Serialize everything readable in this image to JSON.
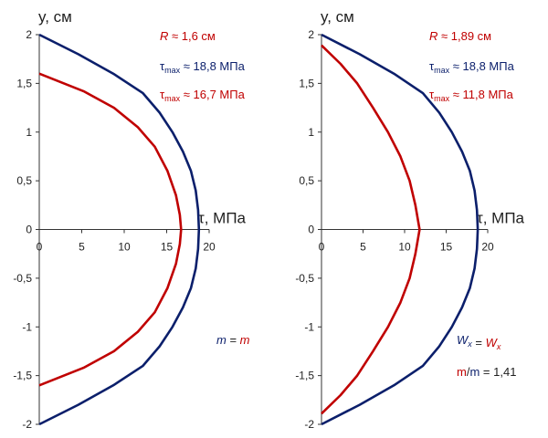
{
  "colors": {
    "blue": "#0b1f6b",
    "red": "#c00000",
    "axis": "#333333",
    "text": "#1f1f1f"
  },
  "chart_data": [
    {
      "type": "line",
      "xlabel": "τ, МПа",
      "ylabel": "y, см",
      "xlim": [
        0,
        20
      ],
      "ylim": [
        -2,
        2
      ],
      "x_ticks": [
        "0",
        "5",
        "10",
        "15",
        "20"
      ],
      "y_ticks": [
        "2",
        "1,5",
        "1",
        "0,5",
        "0",
        "-0,5",
        "-1",
        "-1,5",
        "-2"
      ],
      "series": [
        {
          "color": "#0b1f6b",
          "points": [
            [
              0,
              2
            ],
            [
              4.59,
              1.8
            ],
            [
              8.71,
              1.6
            ],
            [
              12.2,
              1.4
            ],
            [
              14.16,
              1.2
            ],
            [
              15.68,
              1
            ],
            [
              16.91,
              0.8
            ],
            [
              17.86,
              0.6
            ],
            [
              18.42,
              0.4
            ],
            [
              18.7,
              0.2
            ],
            [
              18.8,
              0
            ],
            [
              18.7,
              -0.2
            ],
            [
              18.42,
              -0.4
            ],
            [
              17.86,
              -0.6
            ],
            [
              16.91,
              -0.8
            ],
            [
              15.68,
              -1
            ],
            [
              14.16,
              -1.2
            ],
            [
              12.2,
              -1.4
            ],
            [
              8.71,
              -1.6
            ],
            [
              4.59,
              -1.8
            ],
            [
              0,
              -2
            ]
          ]
        },
        {
          "color": "#c00000",
          "points": [
            [
              0,
              1.6
            ],
            [
              5.2,
              1.42
            ],
            [
              8.8,
              1.25
            ],
            [
              11.6,
              1.05
            ],
            [
              13.6,
              0.85
            ],
            [
              15.1,
              0.6
            ],
            [
              16.1,
              0.35
            ],
            [
              16.55,
              0.15
            ],
            [
              16.7,
              0
            ],
            [
              16.55,
              -0.15
            ],
            [
              16.1,
              -0.35
            ],
            [
              15.1,
              -0.6
            ],
            [
              13.6,
              -0.85
            ],
            [
              11.6,
              -1.05
            ],
            [
              8.8,
              -1.25
            ],
            [
              5.2,
              -1.42
            ],
            [
              0,
              -1.6
            ]
          ]
        }
      ],
      "annotations": [
        {
          "prefix": "R",
          "text": " ≈ 1,6 см",
          "color": "#c00000"
        },
        {
          "prefix": "τ",
          "sub": "max",
          "text": " ≈ 18,8 МПа",
          "color": "#0b1f6b"
        },
        {
          "prefix": "τ",
          "sub": "max",
          "text": " ≈ 16,7 МПа",
          "color": "#c00000"
        },
        {
          "parts": [
            {
              "t": "m",
              "italic": true,
              "color": "#0b1f6b"
            },
            {
              "t": " = ",
              "color": "#1f1f1f"
            },
            {
              "t": "m",
              "italic": true,
              "color": "#c00000"
            }
          ]
        }
      ]
    },
    {
      "type": "line",
      "xlabel": "τ, МПа",
      "ylabel": "y, см",
      "xlim": [
        0,
        20
      ],
      "ylim": [
        -2,
        2
      ],
      "x_ticks": [
        "0",
        "5",
        "10",
        "15",
        "20"
      ],
      "y_ticks": [
        "2",
        "1,5",
        "1",
        "0,5",
        "0",
        "-0,5",
        "-1",
        "-1,5",
        "-2"
      ],
      "series": [
        {
          "color": "#0b1f6b",
          "points": [
            [
              0,
              2
            ],
            [
              4.59,
              1.8
            ],
            [
              8.71,
              1.6
            ],
            [
              12.2,
              1.4
            ],
            [
              14.16,
              1.2
            ],
            [
              15.68,
              1
            ],
            [
              16.91,
              0.8
            ],
            [
              17.86,
              0.6
            ],
            [
              18.42,
              0.4
            ],
            [
              18.7,
              0.2
            ],
            [
              18.8,
              0
            ],
            [
              18.7,
              -0.2
            ],
            [
              18.42,
              -0.4
            ],
            [
              17.86,
              -0.6
            ],
            [
              16.91,
              -0.8
            ],
            [
              15.68,
              -1
            ],
            [
              14.16,
              -1.2
            ],
            [
              12.2,
              -1.4
            ],
            [
              8.71,
              -1.6
            ],
            [
              4.59,
              -1.8
            ],
            [
              0,
              -2
            ]
          ]
        },
        {
          "color": "#c00000",
          "points": [
            [
              0,
              1.89
            ],
            [
              2.3,
              1.7
            ],
            [
              4.3,
              1.5
            ],
            [
              6.2,
              1.25
            ],
            [
              8.0,
              1.0
            ],
            [
              9.5,
              0.75
            ],
            [
              10.6,
              0.5
            ],
            [
              11.3,
              0.25
            ],
            [
              11.8,
              0
            ],
            [
              11.3,
              -0.25
            ],
            [
              10.6,
              -0.5
            ],
            [
              9.5,
              -0.75
            ],
            [
              8.0,
              -1.0
            ],
            [
              6.2,
              -1.25
            ],
            [
              4.3,
              -1.5
            ],
            [
              2.3,
              -1.7
            ],
            [
              0,
              -1.89
            ]
          ]
        }
      ],
      "annotations": [
        {
          "prefix": "R",
          "text": " ≈ 1,89 см",
          "color": "#c00000"
        },
        {
          "prefix": "τ",
          "sub": "max",
          "text": " ≈ 18,8 МПа",
          "color": "#0b1f6b"
        },
        {
          "prefix": "τ",
          "sub": "max",
          "text": " ≈ 11,8 МПа",
          "color": "#c00000"
        },
        {
          "parts": [
            {
              "t": "W",
              "italic": true,
              "color": "#0b1f6b"
            },
            {
              "t": "x",
              "italic": true,
              "sub": true,
              "color": "#0b1f6b"
            },
            {
              "t": " = ",
              "color": "#1f1f1f"
            },
            {
              "t": "W",
              "italic": true,
              "color": "#c00000"
            },
            {
              "t": "x",
              "italic": true,
              "sub": true,
              "color": "#c00000"
            }
          ]
        },
        {
          "parts": [
            {
              "t": "m",
              "color": "#c00000"
            },
            {
              "t": "/",
              "color": "#1f1f1f"
            },
            {
              "t": "m",
              "color": "#0b1f6b"
            },
            {
              "t": " = 1,41",
              "color": "#1f1f1f"
            }
          ]
        }
      ]
    }
  ]
}
